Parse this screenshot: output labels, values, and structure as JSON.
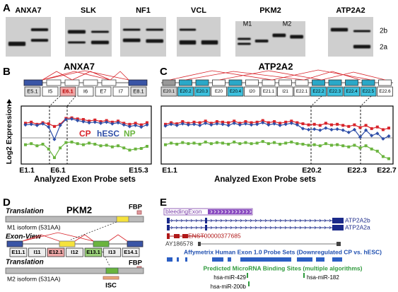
{
  "panel_a": {
    "label": "A",
    "genes": [
      "ANXA7",
      "SLK",
      "NF1",
      "VCL",
      "PKM2",
      "ATP2A2"
    ],
    "pkm2_lanes": [
      "M1",
      "M2"
    ],
    "atp2a2_bands": [
      "2b",
      "2a"
    ]
  },
  "panel_b": {
    "label": "B",
    "chart_data": {
      "type": "line",
      "title": "ANXA7",
      "exons": [
        "E5.1",
        "I5",
        "E6.1",
        "I6",
        "E7",
        "I7",
        "E8.1"
      ],
      "y_label": "Log2 Expression",
      "x_label": "Analyzed Exon Probe sets",
      "x_tick_labels": [
        "E1.1",
        "E6.1",
        "E15.3"
      ],
      "ylim": [
        0,
        10
      ],
      "series": [
        {
          "name": "CP",
          "color": "#d8232a",
          "values": [
            7.2,
            7.4,
            7.0,
            7.3,
            7.1,
            6.6,
            7.0,
            8.1,
            8.2,
            8.0,
            7.9,
            7.6,
            7.8,
            7.5,
            7.7,
            7.4,
            7.6,
            7.2,
            7.0,
            7.2,
            6.9,
            7.3
          ]
        },
        {
          "name": "hESC",
          "color": "#2f4fa8",
          "values": [
            6.9,
            7.0,
            6.8,
            7.1,
            6.5,
            4.2,
            6.8,
            7.9,
            8.0,
            7.7,
            7.5,
            7.3,
            7.4,
            7.2,
            7.4,
            7.1,
            7.3,
            6.9,
            6.6,
            6.8,
            6.5,
            6.9
          ]
        },
        {
          "name": "NP",
          "color": "#6ab43e",
          "values": [
            3.2,
            3.4,
            3.0,
            3.3,
            2.4,
            0.8,
            2.6,
            3.6,
            3.7,
            3.4,
            3.2,
            3.5,
            3.3,
            3.0,
            3.1,
            2.8,
            3.0,
            2.6,
            2.2,
            2.4,
            2.5,
            2.9
          ]
        }
      ]
    }
  },
  "panel_c": {
    "label": "C",
    "chart_data": {
      "type": "line",
      "title": "ATP2A2",
      "exons": [
        "E20.1",
        "E20.2",
        "E20.3",
        "E20",
        "E20.4",
        "I20",
        "E21.1",
        "I21",
        "E22.1",
        "E22.2",
        "E22.3",
        "E22.4",
        "E22.5",
        "E22.6"
      ],
      "x_label": "Analyzed Exon Probe sets",
      "x_tick_labels": [
        "E1.1",
        "E20.2",
        "E22.3",
        "E22.7"
      ],
      "ylim": [
        0,
        10
      ],
      "series": [
        {
          "name": "CP",
          "color": "#d8232a",
          "values": [
            7.0,
            7.3,
            7.1,
            7.5,
            7.2,
            7.4,
            7.3,
            7.6,
            7.2,
            7.5,
            7.4,
            7.3,
            7.6,
            7.2,
            7.5,
            7.3,
            7.4,
            7.7,
            7.3,
            7.5,
            7.2,
            7.4,
            7.6,
            7.3,
            7.1,
            6.9,
            7.0,
            6.8,
            7.2,
            6.9,
            7.0,
            6.8,
            6.6,
            6.9,
            6.4,
            6.8,
            6.2,
            6.5,
            6.0,
            6.3
          ]
        },
        {
          "name": "hESC",
          "color": "#2f4fa8",
          "values": [
            6.7,
            7.0,
            6.8,
            7.1,
            6.9,
            7.0,
            6.8,
            7.2,
            6.9,
            7.1,
            7.0,
            6.8,
            7.2,
            6.9,
            7.1,
            6.9,
            7.0,
            7.3,
            6.9,
            7.1,
            6.8,
            7.0,
            7.2,
            6.9,
            6.2,
            6.0,
            6.1,
            5.9,
            6.3,
            6.0,
            6.1,
            5.9,
            5.5,
            6.0,
            4.6,
            5.9,
            4.9,
            5.3,
            4.3,
            4.8
          ]
        },
        {
          "name": "NP",
          "color": "#6ab43e",
          "values": [
            3.2,
            3.5,
            3.3,
            3.6,
            3.4,
            3.5,
            3.3,
            3.7,
            3.4,
            3.6,
            3.5,
            3.3,
            3.7,
            3.4,
            3.6,
            3.4,
            3.5,
            3.8,
            3.4,
            3.6,
            3.3,
            3.5,
            3.7,
            3.4,
            3.3,
            3.1,
            3.2,
            3.0,
            3.4,
            3.1,
            3.2,
            3.0,
            2.8,
            3.1,
            2.6,
            3.0,
            2.4,
            2.0,
            1.0,
            0.6
          ]
        }
      ]
    }
  },
  "panel_d": {
    "label": "D",
    "title": "PKM2",
    "translation": "Translation",
    "m1": "M1 isoform (531AA)",
    "exon_view": "Exon-View",
    "exons": [
      "E11.1",
      "I11",
      "E12.1",
      "I12",
      "E13.1",
      "I13",
      "E14.1"
    ],
    "m2": "M2 isoform (531AA)",
    "fbp": "FBP",
    "isc": "ISC"
  },
  "panel_e": {
    "label": "E",
    "track": "bleedingExon",
    "transcripts": [
      "ATP2A2b",
      "ATP2A2a"
    ],
    "ensembl": "ENST00000377685",
    "mrna": "AY186578",
    "probe_title": "Affymetrix Human Exon 1.0 Probe Sets (Downregulated CP vs. hESC)",
    "mirna_title": "Predicted MicroRNA Binding Sites (multiple algorithms)",
    "mirnas": [
      "hsa-miR-429",
      "hsa-miR-182",
      "hsa-miR-200b"
    ]
  }
}
